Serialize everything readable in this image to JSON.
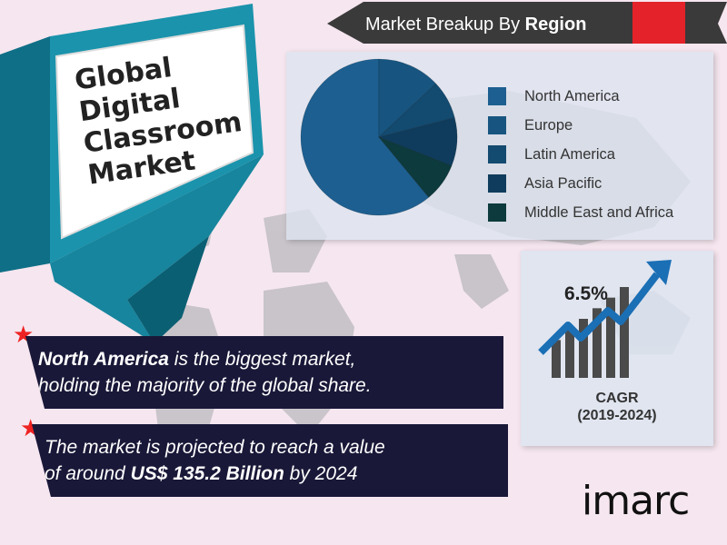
{
  "title": {
    "line1": "Global Digital",
    "line2": "Classroom",
    "line3": "Market"
  },
  "region_header": {
    "prefix": "Market Breakup By",
    "bold": "Region"
  },
  "chart_data": [
    {
      "type": "pie",
      "title": "Market Breakup By Region",
      "categories": [
        "North America",
        "Europe",
        "Latin America",
        "Asia Pacific",
        "Middle East and Africa"
      ],
      "values": [
        61,
        13,
        8,
        10,
        8
      ],
      "colors": [
        "#1d5f90",
        "#175580",
        "#134a70",
        "#0f3c5c",
        "#0c3a3d"
      ],
      "legend": "right"
    },
    {
      "type": "bar",
      "categories": [
        "",
        "",
        "",
        "",
        "",
        ""
      ],
      "values": [
        1,
        2,
        3,
        4,
        5,
        6
      ],
      "title": "",
      "trend": "up-arrow"
    }
  ],
  "cagr": {
    "value": "6.5%",
    "label": "CAGR",
    "period": "(2019-2024)"
  },
  "facts": [
    {
      "bold": "North America",
      "rest_line1": " is the biggest market,",
      "line2": "holding the majority of the global share."
    },
    {
      "line1": "The market is projected to reach a value",
      "pre": "of around ",
      "bold": "US$ 135.2 Billion",
      "post": " by 2024"
    }
  ],
  "logo": {
    "text": "imarc"
  },
  "colors": {
    "banner": "#191838",
    "accent_red": "#e42229",
    "teal": "#1a8fa6",
    "background": "#f6e6ef"
  }
}
